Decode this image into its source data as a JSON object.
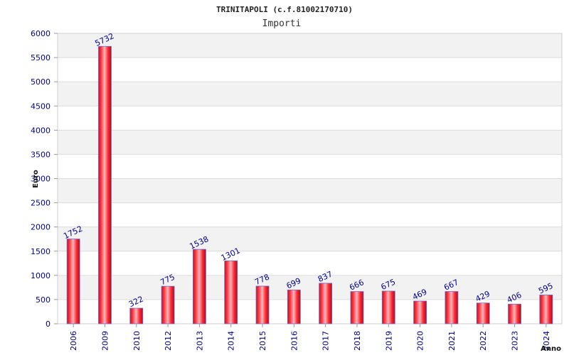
{
  "chart_data": {
    "type": "bar",
    "title": "TRINITAPOLI (c.f.81002170710)",
    "subtitle": "Importi",
    "ylabel": "Euro",
    "xlabel": "Anno",
    "ylim": [
      0,
      6000
    ],
    "yticks": [
      0,
      500,
      1000,
      1500,
      2000,
      2500,
      3000,
      3500,
      4000,
      4500,
      5000,
      5500,
      6000
    ],
    "grid": true,
    "categories": [
      "2006",
      "2009",
      "2010",
      "2012",
      "2013",
      "2014",
      "2015",
      "2016",
      "2017",
      "2018",
      "2019",
      "2020",
      "2021",
      "2022",
      "2023",
      "2024"
    ],
    "values": [
      1752,
      5732,
      322,
      775,
      1538,
      1301,
      778,
      699,
      837,
      666,
      675,
      469,
      667,
      429,
      406,
      595
    ],
    "bar_color": "#e8141e",
    "bar_edge_color": "#6a6ad0",
    "label_color": "#00008b",
    "band_color": "#f2f2f2"
  }
}
